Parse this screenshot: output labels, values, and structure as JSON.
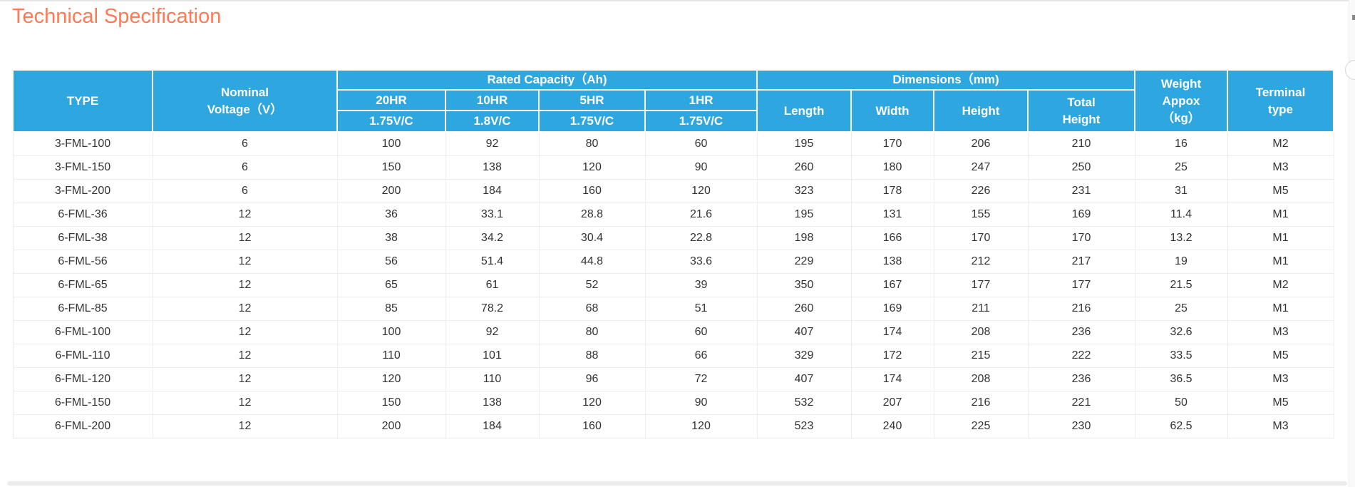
{
  "page": {
    "title": "Technical Specification",
    "accent_color": "#fc7b55",
    "header_bg": "#2ea7e0"
  },
  "table": {
    "header": {
      "type": "TYPE",
      "nominal_line1": "Nominal",
      "nominal_line2": "Voltage（V）",
      "rated_capacity": "Rated Capacity（Ah)",
      "capacity_cols": [
        {
          "hr": "20HR",
          "vc": "1.75V/C"
        },
        {
          "hr": "10HR",
          "vc": "1.8V/C"
        },
        {
          "hr": "5HR",
          "vc": "1.75V/C"
        },
        {
          "hr": "1HR",
          "vc": "1.75V/C"
        }
      ],
      "dimensions": "Dimensions（mm)",
      "dimension_cols": [
        "Length",
        "Width",
        "Height"
      ],
      "total_height_line1": "Total",
      "total_height_line2": "Height",
      "weight_line1": "Weight",
      "weight_line2": "Appox",
      "weight_line3": "（kg）",
      "terminal_line1": "Terminal",
      "terminal_line2": "type"
    },
    "column_keys": [
      "type",
      "nominal-voltage",
      "capacity-20hr",
      "capacity-10hr",
      "capacity-5hr",
      "capacity-1hr",
      "length",
      "width",
      "height",
      "total-height",
      "weight",
      "terminal-type"
    ],
    "rows": [
      [
        "3-FML-100",
        "6",
        "100",
        "92",
        "80",
        "60",
        "195",
        "170",
        "206",
        "210",
        "16",
        "M2"
      ],
      [
        "3-FML-150",
        "6",
        "150",
        "138",
        "120",
        "90",
        "260",
        "180",
        "247",
        "250",
        "25",
        "M3"
      ],
      [
        "3-FML-200",
        "6",
        "200",
        "184",
        "160",
        "120",
        "323",
        "178",
        "226",
        "231",
        "31",
        "M5"
      ],
      [
        "6-FML-36",
        "12",
        "36",
        "33.1",
        "28.8",
        "21.6",
        "195",
        "131",
        "155",
        "169",
        "11.4",
        "M1"
      ],
      [
        "6-FML-38",
        "12",
        "38",
        "34.2",
        "30.4",
        "22.8",
        "198",
        "166",
        "170",
        "170",
        "13.2",
        "M1"
      ],
      [
        "6-FML-56",
        "12",
        "56",
        "51.4",
        "44.8",
        "33.6",
        "229",
        "138",
        "212",
        "217",
        "19",
        "M1"
      ],
      [
        "6-FML-65",
        "12",
        "65",
        "61",
        "52",
        "39",
        "350",
        "167",
        "177",
        "177",
        "21.5",
        "M2"
      ],
      [
        "6-FML-85",
        "12",
        "85",
        "78.2",
        "68",
        "51",
        "260",
        "169",
        "211",
        "216",
        "25",
        "M1"
      ],
      [
        "6-FML-100",
        "12",
        "100",
        "92",
        "80",
        "60",
        "407",
        "174",
        "208",
        "236",
        "32.6",
        "M3"
      ],
      [
        "6-FML-110",
        "12",
        "110",
        "101",
        "88",
        "66",
        "329",
        "172",
        "215",
        "222",
        "33.5",
        "M5"
      ],
      [
        "6-FML-120",
        "12",
        "120",
        "110",
        "96",
        "72",
        "407",
        "174",
        "208",
        "236",
        "36.5",
        "M3"
      ],
      [
        "6-FML-150",
        "12",
        "150",
        "138",
        "120",
        "90",
        "532",
        "207",
        "216",
        "221",
        "50",
        "M5"
      ],
      [
        "6-FML-200",
        "12",
        "200",
        "184",
        "160",
        "120",
        "523",
        "240",
        "225",
        "230",
        "62.5",
        "M3"
      ]
    ]
  }
}
